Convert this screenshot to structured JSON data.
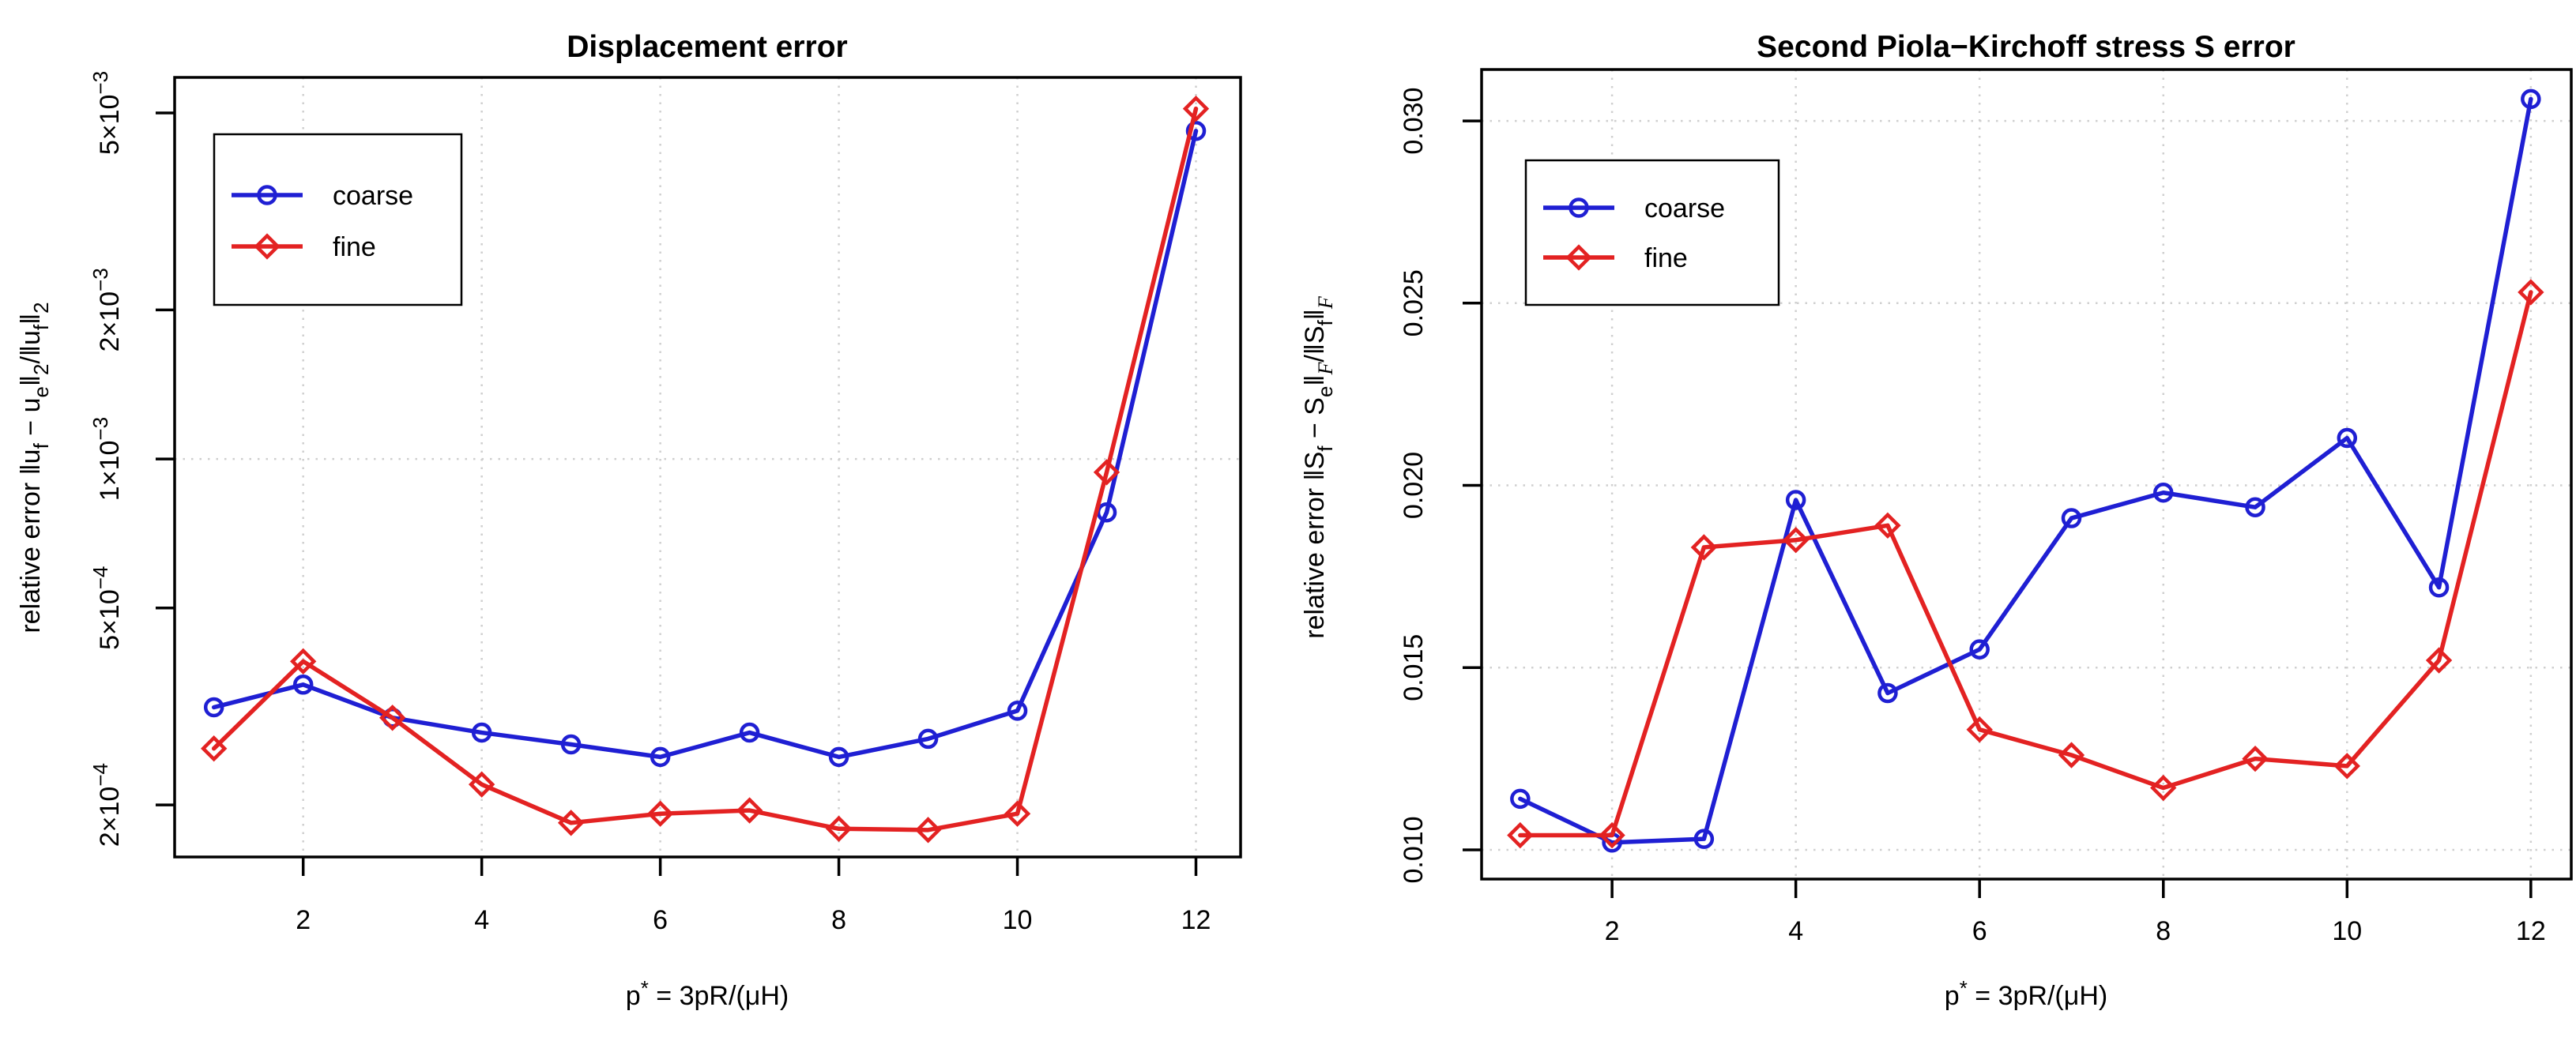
{
  "page_background": "#ffffff",
  "chart_data": [
    {
      "type": "line",
      "title": "Displacement error",
      "xlabel": {
        "pre": "p",
        "sup": "*",
        "post": " = 3pR/(μH)"
      },
      "ylabel_segments": [
        {
          "t": "relative error  ‖u"
        },
        {
          "t": "f",
          "sub": true
        },
        {
          "t": " − u"
        },
        {
          "t": "e",
          "sub": true
        },
        {
          "t": "‖"
        },
        {
          "t": "2",
          "sub": true
        },
        {
          "t": "/‖u"
        },
        {
          "t": "f",
          "sub": true
        },
        {
          "t": "‖"
        },
        {
          "t": "2",
          "sub": true
        }
      ],
      "x": [
        1,
        2,
        3,
        4,
        5,
        6,
        7,
        8,
        9,
        10,
        11,
        12
      ],
      "series": [
        {
          "name": "coarse",
          "color": "#1f1fd3",
          "marker": "circle",
          "values": [
            0.000315,
            0.00035,
            0.0003,
            0.00028,
            0.000265,
            0.00025,
            0.00028,
            0.00025,
            0.000272,
            0.00031,
            0.00078,
            0.0046
          ]
        },
        {
          "name": "fine",
          "color": "#e32222",
          "marker": "diamond",
          "values": [
            0.00026,
            0.00039,
            0.0003,
            0.00022,
            0.000184,
            0.000192,
            0.000195,
            0.000179,
            0.000178,
            0.000192,
            0.00094,
            0.0051
          ]
        }
      ],
      "yscale": "log",
      "ylim": [
        0.000157,
        0.0059
      ],
      "xlim": [
        0.56,
        12.5
      ],
      "xticks": [
        2,
        4,
        6,
        8,
        10,
        12
      ],
      "yticks": [
        {
          "v": 0.005,
          "base": "5×10",
          "sup": "−3"
        },
        {
          "v": 0.002,
          "base": "2×10",
          "sup": "−3"
        },
        {
          "v": 0.001,
          "base": "1×10",
          "sup": "−3"
        },
        {
          "v": 0.0005,
          "base": "5×10",
          "sup": "−4"
        },
        {
          "v": 0.0002,
          "base": "2×10",
          "sup": "−4"
        }
      ],
      "ygrid": [
        0.001
      ],
      "grid": true,
      "legend_position": "top-left"
    },
    {
      "type": "line",
      "title": "Second Piola−Kirchoff stress S error",
      "xlabel": {
        "pre": "p",
        "sup": "*",
        "post": " = 3pR/(μH)"
      },
      "ylabel_segments": [
        {
          "t": "relative error  ‖S"
        },
        {
          "t": "f",
          "sub": true
        },
        {
          "t": " − S"
        },
        {
          "t": "e",
          "sub": true
        },
        {
          "t": "‖"
        },
        {
          "t": "F",
          "sub": true,
          "italic": true
        },
        {
          "t": "/‖S"
        },
        {
          "t": "f",
          "sub": true
        },
        {
          "t": "‖"
        },
        {
          "t": "F",
          "sub": true,
          "italic": true
        }
      ],
      "x": [
        1,
        2,
        3,
        4,
        5,
        6,
        7,
        8,
        9,
        10,
        11,
        12
      ],
      "series": [
        {
          "name": "coarse",
          "color": "#1f1fd3",
          "marker": "circle",
          "values": [
            0.0114,
            0.0102,
            0.0103,
            0.0196,
            0.0143,
            0.0155,
            0.0191,
            0.0198,
            0.0194,
            0.0213,
            0.0172,
            0.0306
          ]
        },
        {
          "name": "fine",
          "color": "#e32222",
          "marker": "diamond",
          "values": [
            0.0104,
            0.0104,
            0.0183,
            0.0185,
            0.0189,
            0.0133,
            0.0126,
            0.0117,
            0.0125,
            0.0123,
            0.0152,
            0.0253
          ]
        }
      ],
      "yscale": "linear",
      "ylim": [
        0.009198,
        0.03141
      ],
      "xlim": [
        0.58,
        12.44
      ],
      "xticks": [
        2,
        4,
        6,
        8,
        10,
        12
      ],
      "yticks": [
        {
          "v": 0.01,
          "base": "0.010"
        },
        {
          "v": 0.015,
          "base": "0.015"
        },
        {
          "v": 0.02,
          "base": "0.020"
        },
        {
          "v": 0.025,
          "base": "0.025"
        },
        {
          "v": 0.03,
          "base": "0.030"
        }
      ],
      "ygrid": [
        0.01,
        0.015,
        0.02,
        0.025,
        0.03
      ],
      "grid": true,
      "legend_position": "top-left"
    }
  ]
}
